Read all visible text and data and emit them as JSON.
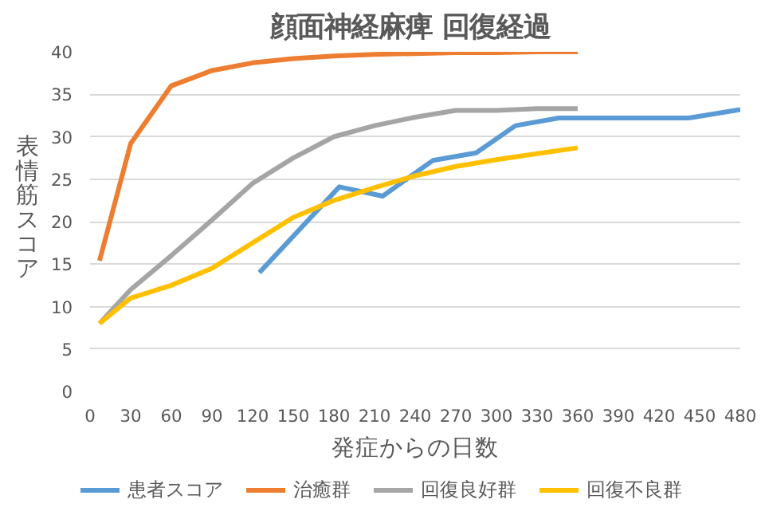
{
  "chart_data": {
    "type": "line",
    "title": "顔面神経麻痺  回復経過",
    "xlabel": "発症からの日数",
    "ylabel": "表情筋スコア",
    "xlim": [
      0,
      480
    ],
    "xticks": [
      0,
      30,
      60,
      90,
      120,
      150,
      180,
      210,
      240,
      270,
      300,
      330,
      360,
      390,
      420,
      450,
      480
    ],
    "ylim": [
      0,
      40
    ],
    "yticks": [
      0,
      5,
      10,
      15,
      20,
      25,
      30,
      35,
      40
    ],
    "grid": "y",
    "legend": "bottom",
    "marker": "none",
    "line_style": "solid",
    "series": [
      {
        "name": "患者スコア",
        "color": "#5b9bd5",
        "x": [
          125,
          184,
          216,
          253,
          285,
          314,
          346,
          442,
          480
        ],
        "values": [
          14,
          24.1,
          23,
          27.2,
          28.1,
          31.3,
          32.2,
          32.2,
          33.2
        ]
      },
      {
        "name": "治癒群",
        "color": "#ed7d31",
        "x": [
          7,
          30,
          60,
          90,
          120,
          150,
          180,
          210,
          240,
          270,
          300,
          330,
          360
        ],
        "values": [
          15.4,
          29.2,
          36,
          37.8,
          38.7,
          39.2,
          39.5,
          39.7,
          39.8,
          39.9,
          39.9,
          40,
          40
        ]
      },
      {
        "name": "回復良好群",
        "color": "#a5a5a5",
        "x": [
          7,
          30,
          60,
          90,
          120,
          150,
          180,
          210,
          240,
          270,
          300,
          330,
          360
        ],
        "values": [
          8,
          12,
          16,
          20.2,
          24.5,
          27.5,
          30,
          31.3,
          32.3,
          33.1,
          33.1,
          33.3,
          33.3
        ]
      },
      {
        "name": "回復不良群",
        "color": "#ffc000",
        "x": [
          7,
          30,
          60,
          90,
          120,
          150,
          180,
          210,
          240,
          270,
          300,
          330,
          360
        ],
        "values": [
          8,
          11,
          12.5,
          14.5,
          17.5,
          20.5,
          22.5,
          24,
          25.4,
          26.5,
          27.3,
          28,
          28.7
        ]
      }
    ]
  }
}
